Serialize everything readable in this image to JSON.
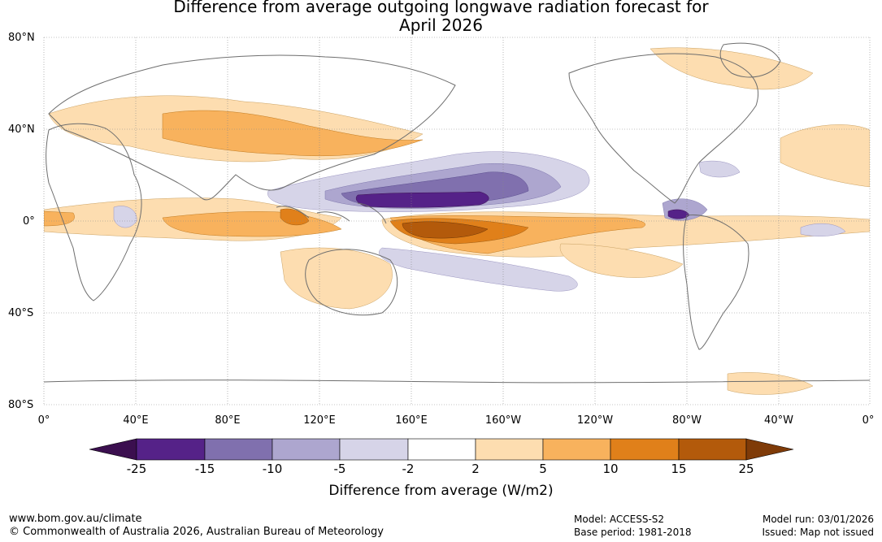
{
  "title": {
    "line1": "Difference from average outgoing longwave radiation forecast for",
    "line2": "April 2026"
  },
  "map": {
    "lat_labels": [
      "80°N",
      "40°N",
      "0°",
      "40°S",
      "80°S"
    ],
    "lon_labels": [
      "0°",
      "40°E",
      "80°E",
      "120°E",
      "160°E",
      "160°W",
      "120°W",
      "80°W",
      "40°W",
      "0°"
    ]
  },
  "colorbar": {
    "ticks": [
      "-25",
      "-15",
      "-10",
      "-5",
      "-2",
      "2",
      "5",
      "10",
      "15",
      "25"
    ],
    "colors": [
      "#3b0f4f",
      "#552288",
      "#8070ae",
      "#ada6cf",
      "#d6d4e8",
      "#ffffff",
      "#fdddb0",
      "#f8b25d",
      "#e0801a",
      "#b35a0b",
      "#7f3b08"
    ],
    "label": "Difference from average (W/m2)"
  },
  "footer": {
    "website": "www.bom.gov.au/climate",
    "copyright": "© Commonwealth of Australia 2026, Australian Bureau of Meteorology",
    "model": "Model: ACCESS-S2",
    "base_period": "Base period: 1981-2018",
    "model_run": "Model run: 03/01/2026",
    "issued": "Issued: Map not issued"
  }
}
